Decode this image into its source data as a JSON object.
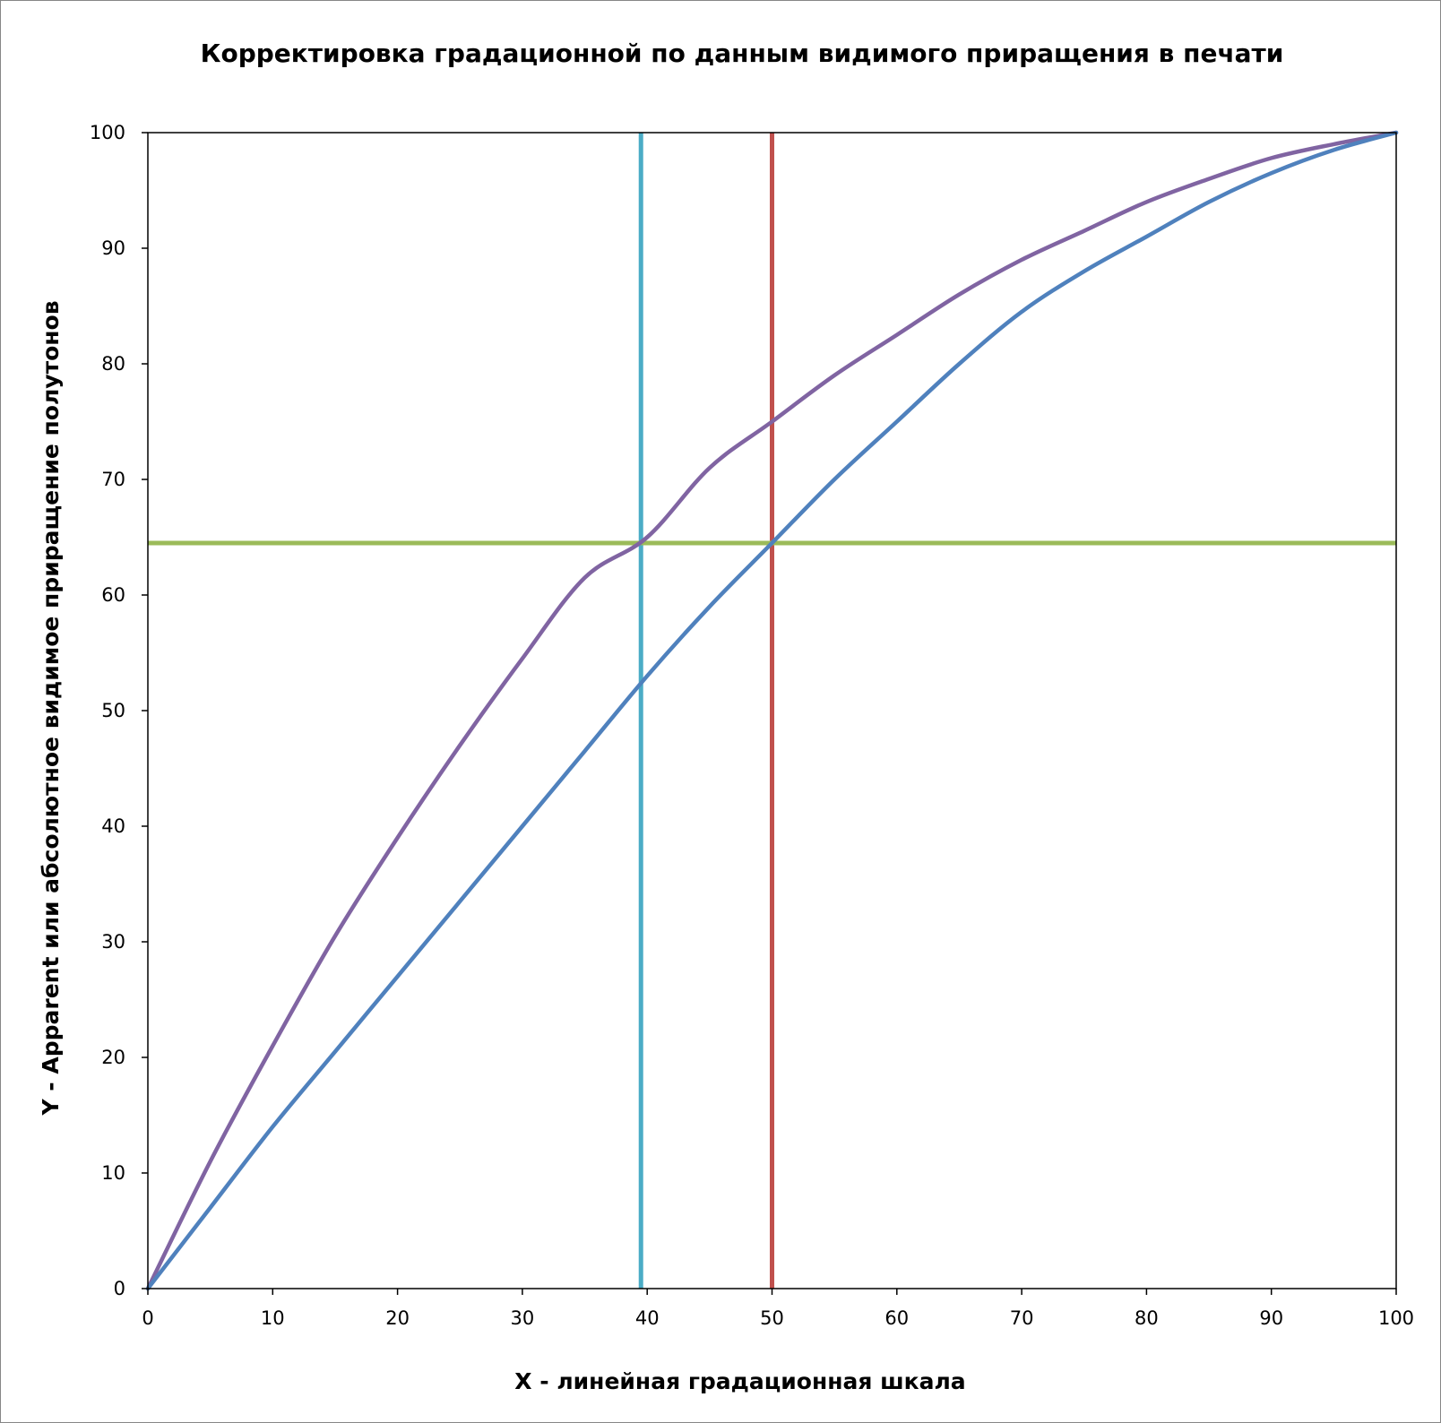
{
  "chart_data": {
    "type": "line",
    "title": "Корректировка градационной по данным видимого приращения в печати",
    "xlabel": "X  -  линейная  градационная  шкала",
    "ylabel": "Y  -  Apparent  или  абсолютное  видимое  приращение  полутонов",
    "xlim": [
      0,
      100
    ],
    "ylim": [
      0,
      100
    ],
    "x_ticks": [
      0,
      10,
      20,
      30,
      40,
      50,
      60,
      70,
      80,
      90,
      100
    ],
    "y_ticks": [
      0,
      10,
      20,
      30,
      40,
      50,
      60,
      70,
      80,
      90,
      100
    ],
    "grid": false,
    "legend": "none",
    "series": [
      {
        "color": "#8064A2",
        "x": [
          0,
          5,
          10,
          15,
          20,
          25,
          30,
          35,
          40,
          45,
          50,
          55,
          60,
          65,
          70,
          75,
          80,
          85,
          90,
          95,
          100
        ],
        "y": [
          0,
          11,
          21,
          30.5,
          39,
          47,
          54.5,
          61.5,
          65,
          71,
          75,
          79,
          82.5,
          86,
          89,
          91.5,
          94,
          96,
          97.8,
          99,
          100
        ]
      },
      {
        "color": "#4F81BD",
        "x": [
          0,
          5,
          10,
          15,
          20,
          25,
          30,
          35,
          40,
          45,
          50,
          55,
          60,
          65,
          70,
          75,
          80,
          85,
          90,
          95,
          100
        ],
        "y": [
          0,
          7,
          14,
          20.5,
          27,
          33.5,
          40,
          46.5,
          53,
          59,
          64.5,
          70,
          75,
          80,
          84.5,
          88,
          91,
          94,
          96.5,
          98.5,
          100
        ]
      }
    ],
    "reference_lines": [
      {
        "orientation": "vertical",
        "value": 39.5,
        "color": "#4BACC6"
      },
      {
        "orientation": "vertical",
        "value": 50,
        "color": "#C0504D"
      },
      {
        "orientation": "horizontal",
        "value": 64.5,
        "color": "#9BBB59"
      }
    ]
  }
}
